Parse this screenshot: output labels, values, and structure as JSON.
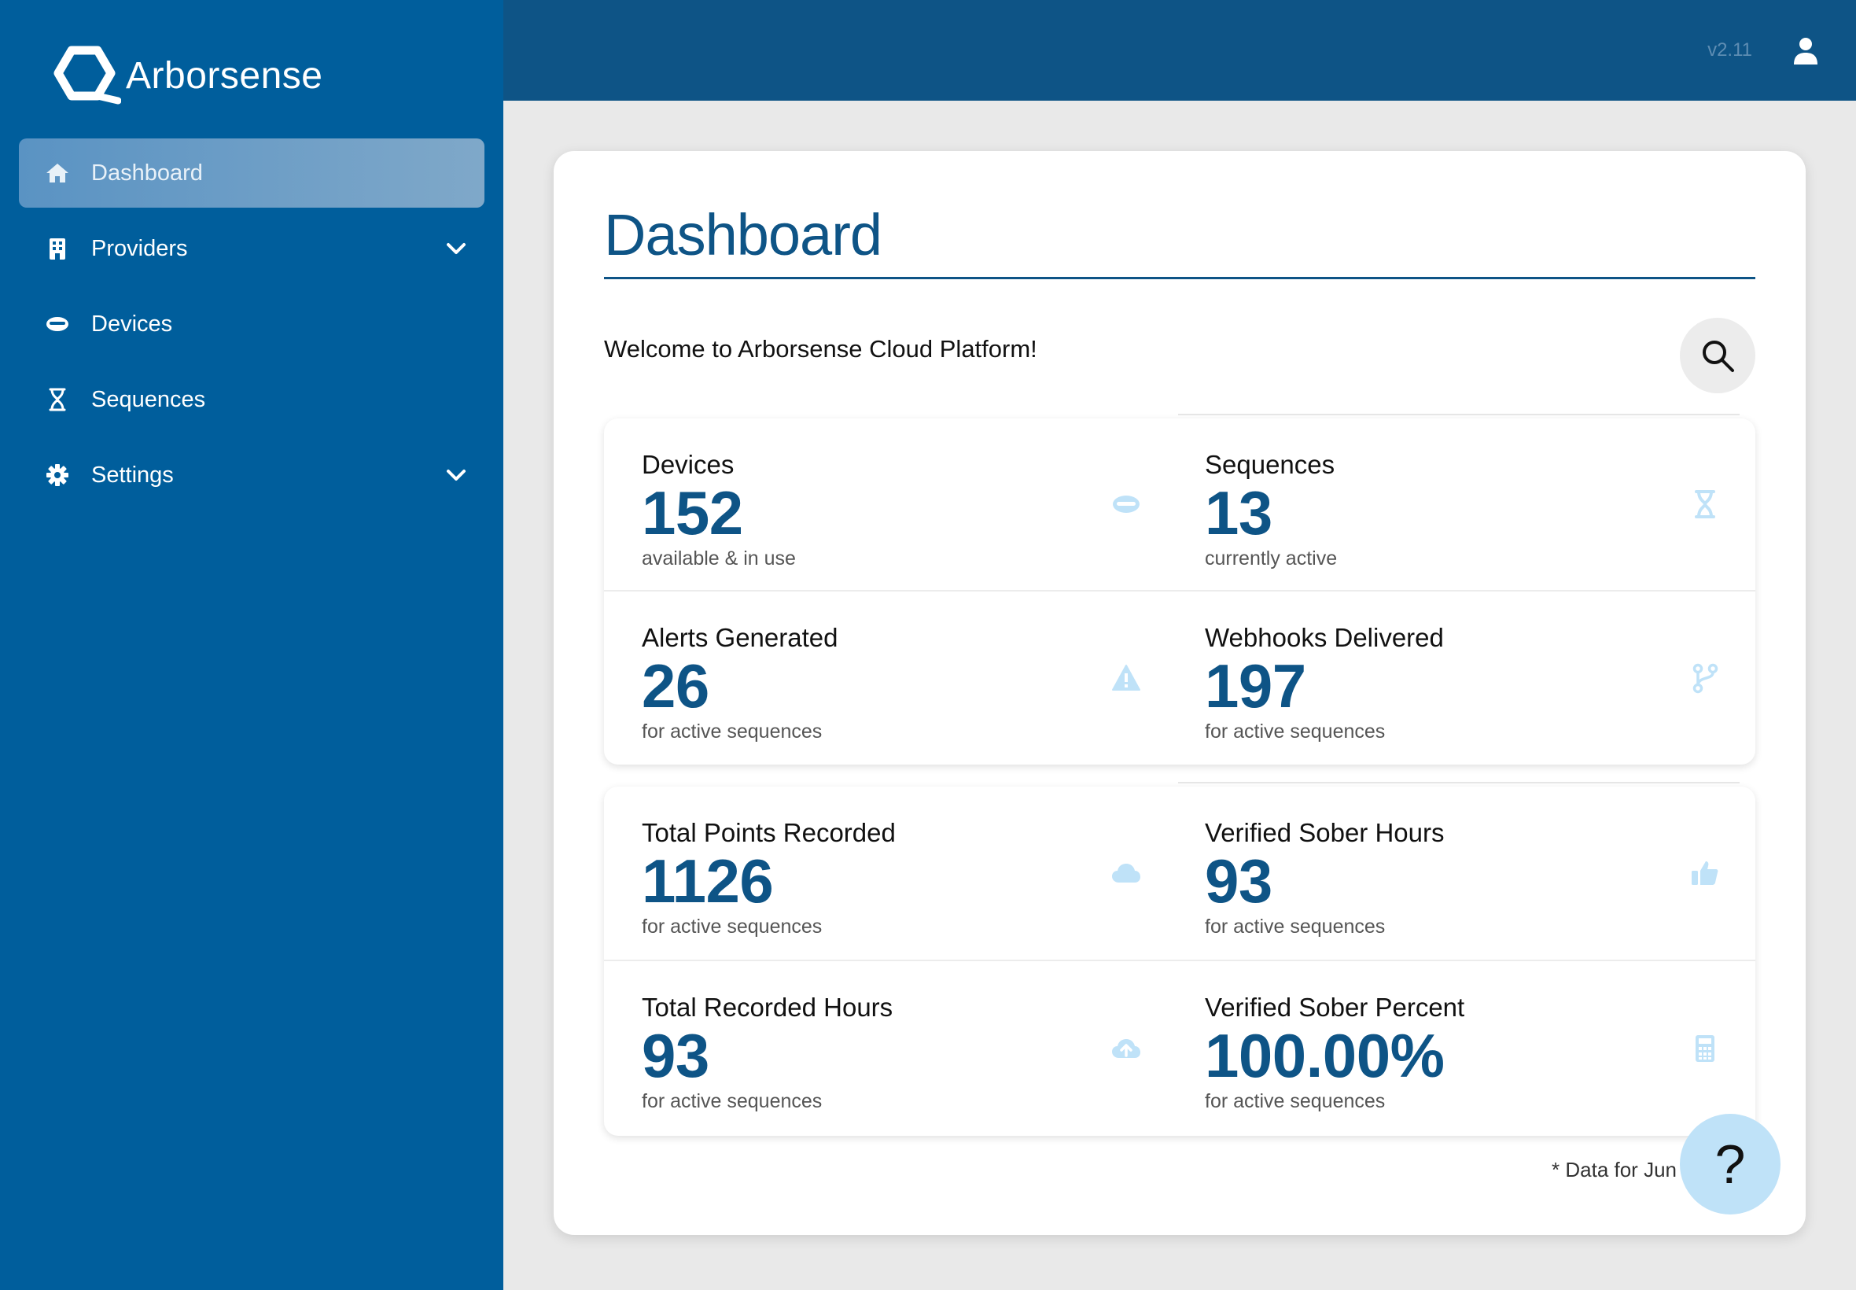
{
  "app": {
    "brand_name": "Arborsense",
    "version": "v2.11"
  },
  "sidebar": {
    "items": [
      {
        "label": "Dashboard",
        "icon": "home-icon",
        "active": true,
        "expandable": false
      },
      {
        "label": "Providers",
        "icon": "building-icon",
        "active": false,
        "expandable": true
      },
      {
        "label": "Devices",
        "icon": "device-icon",
        "active": false,
        "expandable": false
      },
      {
        "label": "Sequences",
        "icon": "hourglass-icon",
        "active": false,
        "expandable": false
      },
      {
        "label": "Settings",
        "icon": "gear-icon",
        "active": false,
        "expandable": true
      }
    ]
  },
  "main": {
    "title": "Dashboard",
    "welcome": "Welcome to Arborsense Cloud Platform!",
    "stats": [
      {
        "label": "Devices",
        "value": "152",
        "sub": "available & in use",
        "icon": "device-icon"
      },
      {
        "label": "Sequences",
        "value": "13",
        "sub": "currently active",
        "icon": "hourglass-icon"
      },
      {
        "label": "Alerts Generated",
        "value": "26",
        "sub": "for active sequences",
        "icon": "warning-icon"
      },
      {
        "label": "Webhooks Delivered",
        "value": "197",
        "sub": "for active sequences",
        "icon": "branch-icon"
      },
      {
        "label": "Total Points Recorded",
        "value": "1126",
        "sub": "for active sequences",
        "icon": "cloud-icon"
      },
      {
        "label": "Verified Sober Hours",
        "value": "93",
        "sub": "for active sequences",
        "icon": "thumbs-up-icon"
      },
      {
        "label": "Total Recorded Hours",
        "value": "93",
        "sub": "for active sequences",
        "icon": "cloud-upload-icon"
      },
      {
        "label": "Verified Sober Percent",
        "value": "100.00%",
        "sub": "for active sequences",
        "icon": "calculator-icon"
      }
    ],
    "footnote": "* Data for Jun",
    "help_label": "?"
  },
  "colors": {
    "sidebar_bg": "#005e9c",
    "topbar_bg": "#0e5486",
    "accent": "#0e5486",
    "icon_light": "#bfe2f8",
    "help_bg": "#bfe2f8"
  }
}
